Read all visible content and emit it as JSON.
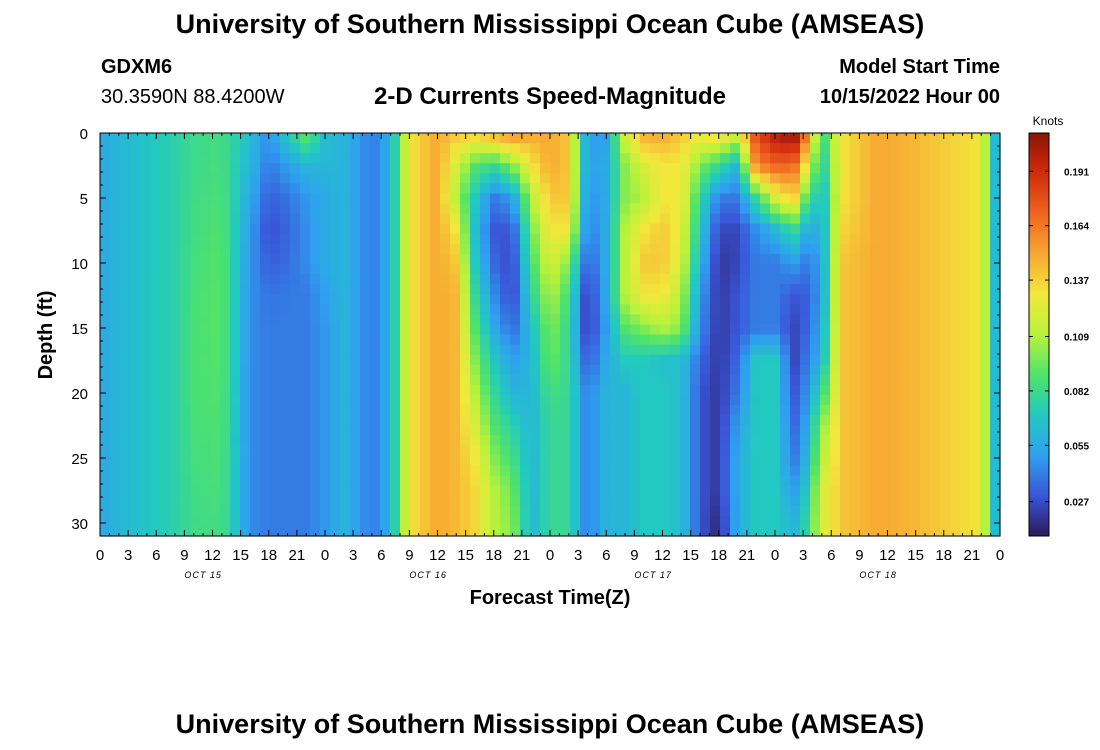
{
  "header": {
    "title": "University of Southern Mississippi Ocean Cube (AMSEAS)",
    "station": "GDXM6",
    "coords": "30.3590N  88.4200W",
    "chart_title": "2-D Currents Speed-Magnitude",
    "model_label": "Model Start Time",
    "model_time": "10/15/2022 Hour 00"
  },
  "footer": {
    "title": "University of Southern Mississippi Ocean Cube (AMSEAS)"
  },
  "colors": {
    "ramp": [
      "#2b1a5c",
      "#3a56d8",
      "#2fa0f0",
      "#22c9c0",
      "#4fe36a",
      "#b9f23a",
      "#f2e83c",
      "#f7a832",
      "#f0641e",
      "#d22c0e",
      "#8c1406"
    ]
  },
  "chart_data": {
    "type": "heatmap",
    "title": "2-D Currents Speed-Magnitude",
    "xlabel": "Forecast Time(Z)",
    "ylabel": "Depth (ft)",
    "x_ticks": [
      "0",
      "3",
      "6",
      "9",
      "12",
      "15",
      "18",
      "21",
      "0",
      "3",
      "6",
      "9",
      "12",
      "15",
      "18",
      "21",
      "0",
      "3",
      "6",
      "9",
      "12",
      "15",
      "18",
      "21",
      "0",
      "3",
      "6",
      "9",
      "12",
      "15",
      "18",
      "21",
      "0"
    ],
    "x_range_hours": [
      0,
      96
    ],
    "day_labels": [
      {
        "text": "OCT 15",
        "hour": 11
      },
      {
        "text": "OCT 16",
        "hour": 35
      },
      {
        "text": "OCT 17",
        "hour": 59
      },
      {
        "text": "OCT 18",
        "hour": 83
      }
    ],
    "y_ticks": [
      "0",
      "5",
      "10",
      "15",
      "20",
      "25",
      "30"
    ],
    "y_range_ft": [
      0,
      31
    ],
    "colorbar": {
      "label": "Knots",
      "ticks": [
        "0.191",
        "0.164",
        "0.137",
        "0.109",
        "0.082",
        "0.055",
        "0.027"
      ],
      "range": [
        0.01,
        0.21
      ]
    },
    "depths_ft": [
      0,
      2.5,
      5,
      7.5,
      10,
      12.5,
      15,
      17.5,
      20,
      22.5,
      25,
      27.5,
      30
    ],
    "columns": [
      {
        "hour": 0,
        "speed": [
          0.055,
          0.055,
          0.055,
          0.055,
          0.055,
          0.055,
          0.055,
          0.055,
          0.055,
          0.055,
          0.055,
          0.055,
          0.055
        ]
      },
      {
        "hour": 2,
        "speed": [
          0.06,
          0.06,
          0.06,
          0.06,
          0.06,
          0.06,
          0.06,
          0.06,
          0.06,
          0.06,
          0.06,
          0.06,
          0.06
        ]
      },
      {
        "hour": 5,
        "speed": [
          0.068,
          0.068,
          0.068,
          0.068,
          0.068,
          0.068,
          0.068,
          0.068,
          0.068,
          0.068,
          0.068,
          0.068,
          0.068
        ]
      },
      {
        "hour": 8,
        "speed": [
          0.075,
          0.075,
          0.075,
          0.075,
          0.075,
          0.075,
          0.075,
          0.075,
          0.075,
          0.075,
          0.075,
          0.075,
          0.075
        ]
      },
      {
        "hour": 10,
        "speed": [
          0.082,
          0.082,
          0.083,
          0.084,
          0.085,
          0.086,
          0.087,
          0.087,
          0.087,
          0.086,
          0.085,
          0.084,
          0.083
        ]
      },
      {
        "hour": 13,
        "speed": [
          0.085,
          0.086,
          0.088,
          0.09,
          0.092,
          0.092,
          0.092,
          0.091,
          0.09,
          0.089,
          0.088,
          0.087,
          0.086
        ]
      },
      {
        "hour": 16,
        "speed": [
          0.065,
          0.06,
          0.055,
          0.05,
          0.048,
          0.046,
          0.045,
          0.045,
          0.045,
          0.045,
          0.045,
          0.045,
          0.045
        ]
      },
      {
        "hour": 18,
        "speed": [
          0.045,
          0.04,
          0.032,
          0.027,
          0.032,
          0.038,
          0.04,
          0.04,
          0.04,
          0.04,
          0.04,
          0.04,
          0.04
        ]
      },
      {
        "hour": 20,
        "speed": [
          0.07,
          0.05,
          0.038,
          0.034,
          0.036,
          0.04,
          0.04,
          0.04,
          0.04,
          0.04,
          0.04,
          0.04,
          0.04
        ]
      },
      {
        "hour": 22,
        "speed": [
          0.095,
          0.06,
          0.048,
          0.045,
          0.045,
          0.04,
          0.04,
          0.04,
          0.04,
          0.04,
          0.04,
          0.04,
          0.04
        ]
      },
      {
        "hour": 24,
        "speed": [
          0.065,
          0.06,
          0.055,
          0.055,
          0.055,
          0.05,
          0.048,
          0.048,
          0.048,
          0.048,
          0.048,
          0.048,
          0.048
        ]
      },
      {
        "hour": 26,
        "speed": [
          0.06,
          0.06,
          0.06,
          0.06,
          0.06,
          0.06,
          0.06,
          0.06,
          0.06,
          0.06,
          0.06,
          0.06,
          0.06
        ]
      },
      {
        "hour": 29,
        "speed": [
          0.04,
          0.04,
          0.04,
          0.04,
          0.04,
          0.04,
          0.04,
          0.04,
          0.04,
          0.04,
          0.04,
          0.04,
          0.04
        ]
      },
      {
        "hour": 31,
        "speed": [
          0.058,
          0.058,
          0.058,
          0.058,
          0.058,
          0.058,
          0.058,
          0.058,
          0.058,
          0.058,
          0.058,
          0.058,
          0.058
        ]
      },
      {
        "hour": 33,
        "speed": [
          0.13,
          0.13,
          0.13,
          0.13,
          0.13,
          0.13,
          0.13,
          0.13,
          0.13,
          0.13,
          0.13,
          0.13,
          0.13
        ]
      },
      {
        "hour": 36,
        "speed": [
          0.15,
          0.15,
          0.15,
          0.15,
          0.15,
          0.15,
          0.15,
          0.15,
          0.15,
          0.15,
          0.15,
          0.15,
          0.15
        ]
      },
      {
        "hour": 38,
        "speed": [
          0.14,
          0.12,
          0.11,
          0.13,
          0.14,
          0.145,
          0.145,
          0.145,
          0.145,
          0.145,
          0.145,
          0.145,
          0.145
        ]
      },
      {
        "hour": 40,
        "speed": [
          0.14,
          0.09,
          0.07,
          0.065,
          0.07,
          0.08,
          0.09,
          0.1,
          0.11,
          0.12,
          0.13,
          0.135,
          0.135
        ]
      },
      {
        "hour": 42,
        "speed": [
          0.15,
          0.08,
          0.04,
          0.03,
          0.035,
          0.045,
          0.055,
          0.07,
          0.08,
          0.09,
          0.1,
          0.11,
          0.11
        ]
      },
      {
        "hour": 44,
        "speed": [
          0.16,
          0.1,
          0.05,
          0.03,
          0.025,
          0.025,
          0.035,
          0.05,
          0.06,
          0.075,
          0.085,
          0.095,
          0.1
        ]
      },
      {
        "hour": 46,
        "speed": [
          0.15,
          0.13,
          0.11,
          0.095,
          0.085,
          0.075,
          0.065,
          0.06,
          0.06,
          0.06,
          0.06,
          0.06,
          0.06
        ]
      },
      {
        "hour": 48,
        "speed": [
          0.15,
          0.15,
          0.14,
          0.13,
          0.12,
          0.11,
          0.1,
          0.095,
          0.085,
          0.08,
          0.08,
          0.08,
          0.08
        ]
      },
      {
        "hour": 50,
        "speed": [
          0.14,
          0.14,
          0.14,
          0.13,
          0.1,
          0.085,
          0.08,
          0.08,
          0.08,
          0.08,
          0.08,
          0.08,
          0.08
        ]
      },
      {
        "hour": 52,
        "speed": [
          0.05,
          0.05,
          0.045,
          0.04,
          0.03,
          0.02,
          0.02,
          0.03,
          0.04,
          0.04,
          0.04,
          0.04,
          0.04
        ]
      },
      {
        "hour": 54,
        "speed": [
          0.05,
          0.055,
          0.055,
          0.055,
          0.055,
          0.055,
          0.05,
          0.055,
          0.06,
          0.06,
          0.06,
          0.06,
          0.06
        ]
      },
      {
        "hour": 56,
        "speed": [
          0.12,
          0.1,
          0.1,
          0.11,
          0.11,
          0.11,
          0.09,
          0.07,
          0.06,
          0.06,
          0.06,
          0.06,
          0.06
        ]
      },
      {
        "hour": 58,
        "speed": [
          0.15,
          0.12,
          0.11,
          0.13,
          0.14,
          0.13,
          0.1,
          0.07,
          0.07,
          0.07,
          0.07,
          0.07,
          0.07
        ]
      },
      {
        "hour": 60,
        "speed": [
          0.15,
          0.13,
          0.13,
          0.14,
          0.14,
          0.13,
          0.11,
          0.065,
          0.07,
          0.07,
          0.07,
          0.07,
          0.07
        ]
      },
      {
        "hour": 62,
        "speed": [
          0.14,
          0.13,
          0.13,
          0.125,
          0.12,
          0.11,
          0.1,
          0.065,
          0.065,
          0.065,
          0.065,
          0.065,
          0.065
        ]
      },
      {
        "hour": 64,
        "speed": [
          0.13,
          0.1,
          0.08,
          0.07,
          0.06,
          0.05,
          0.045,
          0.035,
          0.03,
          0.03,
          0.03,
          0.03,
          0.03
        ]
      },
      {
        "hour": 66,
        "speed": [
          0.14,
          0.08,
          0.04,
          0.025,
          0.02,
          0.02,
          0.02,
          0.02,
          0.02,
          0.02,
          0.02,
          0.02,
          0.015
        ]
      },
      {
        "hour": 68,
        "speed": [
          0.12,
          0.06,
          0.04,
          0.025,
          0.025,
          0.03,
          0.03,
          0.035,
          0.04,
          0.05,
          0.055,
          0.055,
          0.055
        ]
      },
      {
        "hour": 70,
        "speed": [
          0.18,
          0.16,
          0.08,
          0.045,
          0.04,
          0.04,
          0.04,
          0.07,
          0.07,
          0.07,
          0.07,
          0.07,
          0.07
        ]
      },
      {
        "hour": 72,
        "speed": [
          0.2,
          0.17,
          0.12,
          0.06,
          0.04,
          0.04,
          0.04,
          0.07,
          0.07,
          0.07,
          0.07,
          0.07,
          0.07
        ]
      },
      {
        "hour": 74,
        "speed": [
          0.21,
          0.17,
          0.14,
          0.08,
          0.05,
          0.03,
          0.025,
          0.025,
          0.03,
          0.035,
          0.04,
          0.05,
          0.06
        ]
      },
      {
        "hour": 75,
        "speed": [
          0.18,
          0.14,
          0.1,
          0.06,
          0.04,
          0.03,
          0.03,
          0.035,
          0.04,
          0.045,
          0.05,
          0.06,
          0.07
        ]
      },
      {
        "hour": 77,
        "speed": [
          0.08,
          0.07,
          0.06,
          0.055,
          0.05,
          0.05,
          0.055,
          0.06,
          0.08,
          0.1,
          0.11,
          0.12,
          0.12
        ]
      },
      {
        "hour": 79,
        "speed": [
          0.13,
          0.13,
          0.13,
          0.135,
          0.14,
          0.14,
          0.14,
          0.14,
          0.14,
          0.14,
          0.14,
          0.14,
          0.14
        ]
      },
      {
        "hour": 83,
        "speed": [
          0.15,
          0.15,
          0.15,
          0.15,
          0.15,
          0.15,
          0.15,
          0.15,
          0.15,
          0.15,
          0.15,
          0.15,
          0.15
        ]
      },
      {
        "hour": 87,
        "speed": [
          0.145,
          0.145,
          0.145,
          0.145,
          0.145,
          0.145,
          0.145,
          0.145,
          0.145,
          0.145,
          0.145,
          0.145,
          0.145
        ]
      },
      {
        "hour": 94,
        "speed": [
          0.13,
          0.13,
          0.13,
          0.13,
          0.13,
          0.13,
          0.13,
          0.13,
          0.13,
          0.13,
          0.13,
          0.13,
          0.13
        ]
      },
      {
        "hour": 95,
        "speed": [
          0.08,
          0.08,
          0.08,
          0.08,
          0.08,
          0.08,
          0.08,
          0.08,
          0.08,
          0.08,
          0.08,
          0.08,
          0.08
        ]
      },
      {
        "hour": 96,
        "speed": [
          0.045,
          0.045,
          0.045,
          0.045,
          0.045,
          0.045,
          0.045,
          0.045,
          0.045,
          0.045,
          0.045,
          0.045,
          0.045
        ]
      }
    ]
  }
}
